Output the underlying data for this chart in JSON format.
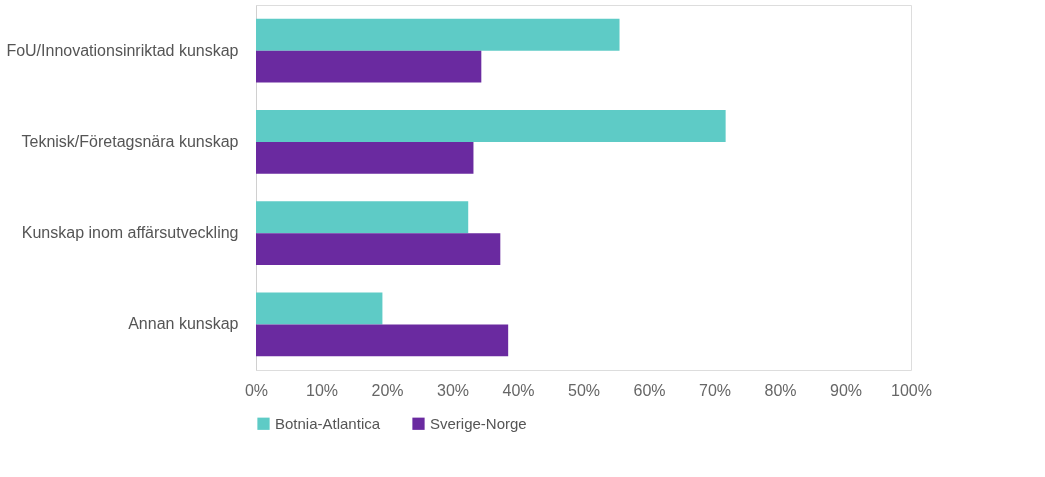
{
  "chart_data": {
    "type": "bar",
    "orientation": "horizontal",
    "categories": [
      "FoU/Innovationsinriktad kunskap",
      "Teknisk/Företagsnära kunskap",
      "Kunskap inom affärsutveckling",
      "Annan kunskap"
    ],
    "series": [
      {
        "name": "Botnia-Atlantica",
        "color": "#5ecbc6",
        "values": [
          55.5,
          71.7,
          32.4,
          19.3
        ]
      },
      {
        "name": "Sverige-Norge",
        "color": "#6a2aa0",
        "values": [
          34.4,
          33.2,
          37.3,
          38.5
        ]
      }
    ],
    "xlim": [
      0,
      100
    ],
    "xticks": [
      {
        "value": 0,
        "label": "0%"
      },
      {
        "value": 10,
        "label": "10%"
      },
      {
        "value": 20,
        "label": "20%"
      },
      {
        "value": 30,
        "label": "30%"
      },
      {
        "value": 40,
        "label": "40%"
      },
      {
        "value": 50,
        "label": "50%"
      },
      {
        "value": 60,
        "label": "60%"
      },
      {
        "value": 70,
        "label": "70%"
      },
      {
        "value": 80,
        "label": "80%"
      },
      {
        "value": 90,
        "label": "90%"
      },
      {
        "value": 100,
        "label": "100%"
      }
    ],
    "grid": false,
    "legend": "bottom"
  }
}
